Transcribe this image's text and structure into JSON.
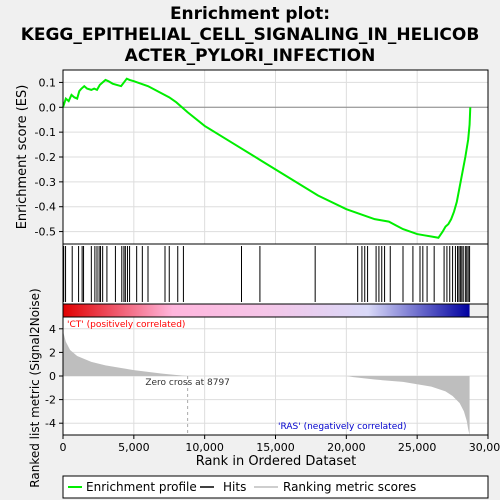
{
  "chart_data": {
    "type": "line",
    "title_lines": [
      "Enrichment plot:",
      "KEGG_EPITHELIAL_CELL_SIGNALING_IN_HELICOB",
      "ACTER_PYLORI_INFECTION"
    ],
    "es_panel": {
      "ylabel": "Enrichment score (ES)",
      "ylim": [
        -0.55,
        0.15
      ],
      "yticks": [
        0.1,
        0.0,
        -0.1,
        -0.2,
        -0.3,
        -0.4,
        -0.5
      ],
      "ytick_labels": [
        "0.1",
        "0.0",
        "-0.1",
        "-0.2",
        "-0.3",
        "-0.4",
        "-0.5"
      ],
      "grid": true,
      "series": [
        {
          "name": "Enrichment profile",
          "color": "#00ee00",
          "x": [
            0,
            200,
            400,
            600,
            800,
            1000,
            1150,
            1300,
            1500,
            1700,
            2000,
            2200,
            2400,
            2600,
            2800,
            3000,
            3200,
            3500,
            3800,
            4100,
            4300,
            4500,
            4700,
            5000,
            5500,
            6000,
            6500,
            7000,
            7500,
            8000,
            8797,
            10000,
            12000,
            14000,
            16000,
            18000,
            20000,
            21000,
            22000,
            22500,
            23000,
            23500,
            24000,
            24500,
            25000,
            25500,
            26000,
            26500,
            26800,
            27000,
            27200,
            27400,
            27600,
            27800,
            28000,
            28200,
            28400,
            28600,
            28700,
            28750
          ],
          "y": [
            0.0,
            0.035,
            0.025,
            0.05,
            0.04,
            0.035,
            0.065,
            0.075,
            0.085,
            0.075,
            0.07,
            0.075,
            0.07,
            0.09,
            0.1,
            0.11,
            0.105,
            0.095,
            0.09,
            0.085,
            0.1,
            0.115,
            0.11,
            0.105,
            0.095,
            0.085,
            0.07,
            0.055,
            0.04,
            0.02,
            -0.02,
            -0.075,
            -0.145,
            -0.215,
            -0.285,
            -0.355,
            -0.41,
            -0.43,
            -0.45,
            -0.455,
            -0.46,
            -0.475,
            -0.49,
            -0.5,
            -0.51,
            -0.515,
            -0.52,
            -0.525,
            -0.5,
            -0.48,
            -0.47,
            -0.45,
            -0.42,
            -0.38,
            -0.32,
            -0.26,
            -0.2,
            -0.13,
            -0.07,
            0.0
          ]
        }
      ]
    },
    "hits_x": [
      50,
      180,
      650,
      1100,
      1350,
      1450,
      2000,
      2250,
      2400,
      2550,
      2650,
      2800,
      3100,
      3700,
      4150,
      4300,
      4400,
      4550,
      4700,
      5200,
      5600,
      6000,
      7200,
      7500,
      8100,
      8500,
      12600,
      13900,
      17800,
      20800,
      21100,
      21300,
      21500,
      22100,
      22300,
      22500,
      22700,
      23100,
      24000,
      24700,
      25200,
      25400,
      25700,
      26200,
      26900,
      27100,
      27300,
      27500,
      27700,
      27850,
      27950,
      28050,
      28150,
      28250,
      28400,
      28500,
      28600,
      28700
    ],
    "gradient_stops": [
      "#e00000",
      "#ffb6dd",
      "#f5c6e8",
      "#d9d9f8",
      "#0000a0"
    ],
    "metric_panel": {
      "ylabel": "Ranked list metric (Signal2Noise)",
      "ylim": [
        -5,
        5
      ],
      "yticks": [
        4,
        2,
        0,
        -2,
        -4
      ],
      "ytick_labels": [
        "4",
        "2",
        "0",
        "-2",
        "-4"
      ],
      "grid": true,
      "fill_color": "#bebebe",
      "x": [
        0,
        200,
        500,
        1000,
        2000,
        3000,
        4000,
        5000,
        6000,
        7000,
        8000,
        8797,
        10000,
        15000,
        20000,
        20500,
        22000,
        24000,
        25000,
        26000,
        27000,
        27500,
        28000,
        28300,
        28500,
        28600,
        28700
      ],
      "y": [
        3.8,
        2.9,
        2.2,
        1.7,
        1.2,
        0.9,
        0.7,
        0.5,
        0.35,
        0.2,
        0.08,
        0.0,
        0.0,
        0.0,
        0.0,
        -0.1,
        -0.3,
        -0.5,
        -0.7,
        -0.9,
        -1.3,
        -1.7,
        -2.3,
        -3.0,
        -3.8,
        -4.5,
        -5.0
      ],
      "zero_cross": 8797,
      "zero_cross_label": "Zero cross at 8797",
      "pos_label": "'CT' (positively correlated)",
      "neg_label": "'RAS' (negatively correlated)",
      "pos_color": "#ff0000",
      "neg_color": "#0000cc"
    },
    "xlabel": "Rank in Ordered Dataset",
    "xlim": [
      0,
      30000
    ],
    "xticks": [
      0,
      5000,
      10000,
      15000,
      20000,
      25000,
      30000
    ],
    "xtick_labels": [
      "0",
      "5,000",
      "10,000",
      "15,000",
      "20,000",
      "25,000",
      "30,000"
    ],
    "legend": {
      "placement": "bottom",
      "items": [
        {
          "label": "Enrichment profile",
          "color": "#00ee00"
        },
        {
          "label": "Hits",
          "color": "#000000"
        },
        {
          "label": "Ranking metric scores",
          "color": "#bebebe"
        }
      ]
    }
  }
}
